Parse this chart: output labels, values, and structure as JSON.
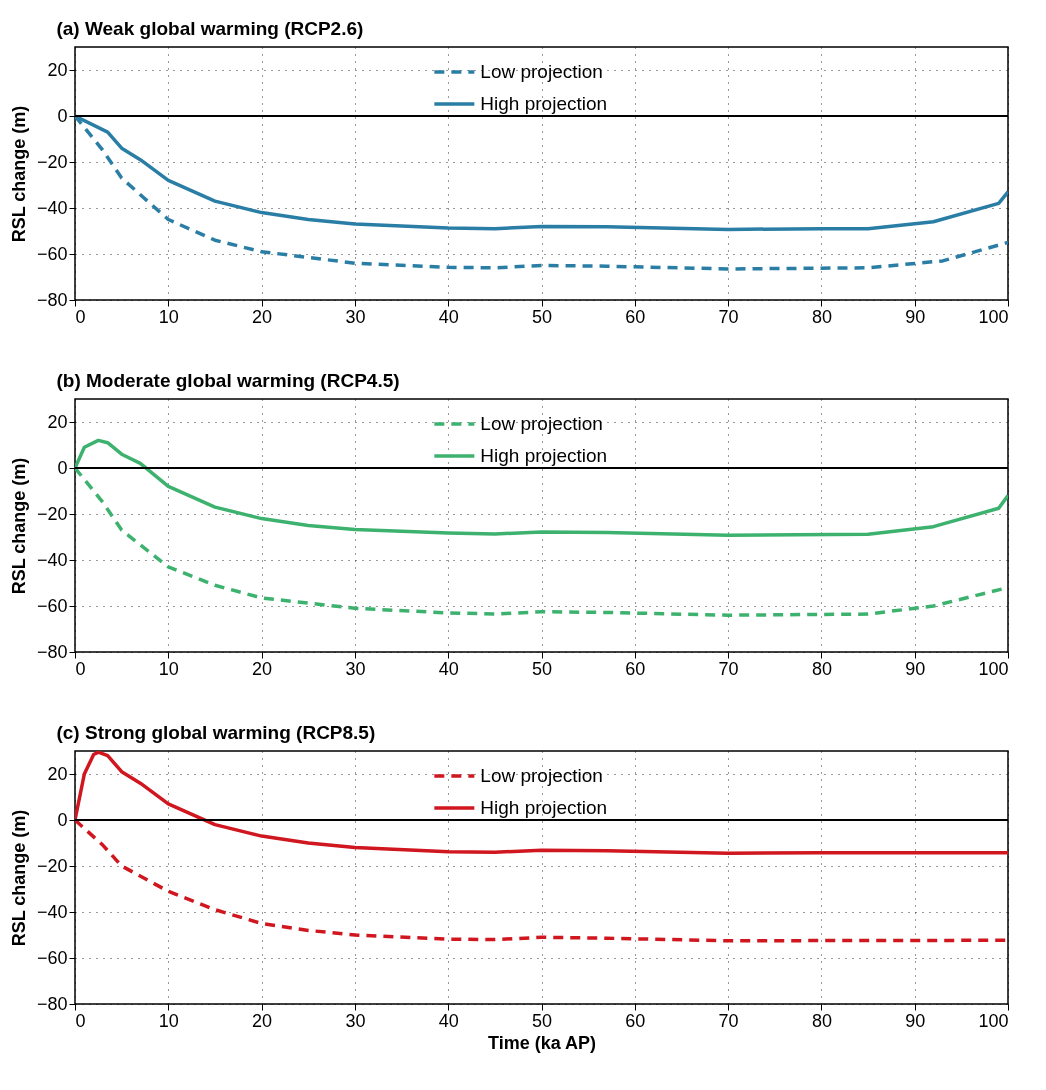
{
  "chart_data": [
    {
      "type": "line",
      "title": "(a) Weak global warming (RCP2.6)",
      "ylabel": "RSL change (m)",
      "xlim": [
        0,
        100
      ],
      "ylim": [
        -80,
        30
      ],
      "xticks": [
        0,
        10,
        20,
        30,
        40,
        50,
        60,
        70,
        80,
        90,
        100
      ],
      "yticks": [
        -80,
        -60,
        -40,
        -20,
        0,
        20
      ],
      "grid": true,
      "legend": "top",
      "tick_labels": "xy",
      "ref_lines": [
        {
          "axis": "y",
          "value": 0,
          "color": "#000000"
        }
      ],
      "series": [
        {
          "name": "Low projection",
          "color": "#2a7ea5",
          "line_style": "dashed",
          "x": [
            0,
            3,
            5,
            10,
            15,
            20,
            30,
            40,
            45,
            50,
            57,
            70,
            85,
            93,
            100
          ],
          "values": [
            0,
            -15,
            -27,
            -45,
            -54,
            -59,
            -64,
            -65.8,
            -66,
            -65,
            -65.3,
            -66.5,
            -66,
            -63,
            -55
          ]
        },
        {
          "name": "High projection",
          "color": "#2a7ea5",
          "line_style": "solid",
          "x": [
            0,
            3.5,
            5,
            7,
            10,
            15,
            20,
            25,
            30,
            40,
            45,
            50,
            57,
            70,
            80,
            85,
            92,
            99,
            100
          ],
          "values": [
            0,
            -7,
            -14,
            -19,
            -28,
            -37,
            -42,
            -45,
            -47,
            -48.7,
            -49,
            -48,
            -48.2,
            -49.3,
            -49,
            -49,
            -46,
            -38,
            -33
          ]
        }
      ]
    },
    {
      "type": "line",
      "title": "(b) Moderate global warming (RCP4.5)",
      "ylabel": "RSL change (m)",
      "xlim": [
        0,
        100
      ],
      "ylim": [
        -80,
        30
      ],
      "xticks": [
        0,
        10,
        20,
        30,
        40,
        50,
        60,
        70,
        80,
        90,
        100
      ],
      "yticks": [
        -80,
        -60,
        -40,
        -20,
        0,
        20
      ],
      "grid": true,
      "legend": "top",
      "ref_lines": [
        {
          "axis": "y",
          "value": 0,
          "color": "#000000"
        }
      ],
      "series": [
        {
          "name": "Low projection",
          "color": "#3db26f",
          "line_style": "dashed",
          "x": [
            0,
            3,
            5,
            10,
            15,
            20,
            30,
            40,
            45,
            50,
            57,
            70,
            85,
            92,
            100
          ],
          "values": [
            0,
            -15,
            -27,
            -43,
            -51,
            -56.5,
            -61,
            -63,
            -63.5,
            -62.5,
            -62.8,
            -64,
            -63.5,
            -60,
            -52
          ]
        },
        {
          "name": "High projection",
          "color": "#3db26f",
          "line_style": "solid",
          "x": [
            0,
            1,
            2.5,
            3.5,
            5,
            7,
            10,
            15,
            20,
            25,
            30,
            40,
            45,
            50,
            57,
            70,
            85,
            92,
            99,
            100
          ],
          "values": [
            0,
            9,
            12,
            11,
            6,
            2,
            -8,
            -17,
            -22,
            -25,
            -26.7,
            -28.3,
            -28.7,
            -27.8,
            -28,
            -29.2,
            -28.8,
            -25.5,
            -17.5,
            -12
          ]
        }
      ]
    },
    {
      "type": "line",
      "title": "(c) Strong global warming (RCP8.5)",
      "xlabel": "Time (ka AP)",
      "ylabel": "RSL change (m)",
      "xlim": [
        0,
        100
      ],
      "ylim": [
        -80,
        30
      ],
      "xticks": [
        0,
        10,
        20,
        30,
        40,
        50,
        60,
        70,
        80,
        90,
        100
      ],
      "yticks": [
        -80,
        -60,
        -40,
        -20,
        0,
        20
      ],
      "grid": true,
      "legend": "top",
      "ref_lines": [
        {
          "axis": "y",
          "value": 0,
          "color": "#000000"
        }
      ],
      "series": [
        {
          "name": "Low projection",
          "color": "#d0161e",
          "line_style": "dashed",
          "x": [
            0,
            3,
            5,
            10,
            15,
            20,
            25,
            30,
            40,
            45,
            50,
            57,
            70,
            100
          ],
          "values": [
            0,
            -11,
            -20,
            -31,
            -39,
            -45,
            -48,
            -50,
            -51.8,
            -52,
            -51,
            -51.4,
            -52.5,
            -52.3
          ]
        },
        {
          "name": "High projection",
          "color": "#d0161e",
          "line_style": "solid",
          "x": [
            0,
            1,
            2,
            2.5,
            3.5,
            5,
            7,
            10,
            15,
            20,
            25,
            30,
            40,
            45,
            50,
            57,
            70,
            80,
            100
          ],
          "values": [
            0,
            20,
            28.5,
            29.5,
            28,
            21,
            16,
            7,
            -2,
            -7,
            -10,
            -12,
            -13.8,
            -14,
            -13.2,
            -13.4,
            -14.5,
            -14.2,
            -14.2
          ]
        }
      ]
    }
  ]
}
